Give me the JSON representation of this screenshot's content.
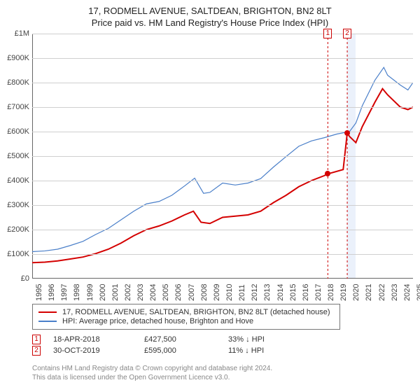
{
  "title": "17, RODMELL AVENUE, SALTDEAN, BRIGHTON, BN2 8LT",
  "subtitle": "Price paid vs. HM Land Registry's House Price Index (HPI)",
  "colors": {
    "series1": "#d40000",
    "series2": "#4a7fc9",
    "grid": "#cfcfcf",
    "axis": "#666666",
    "marker_border": "#cc0000",
    "shade": "rgba(120,160,230,0.15)",
    "text": "#333333",
    "footer": "#888888"
  },
  "y_axis": {
    "min": 0,
    "max": 1000000,
    "step": 100000,
    "labels": [
      "£0",
      "£100K",
      "£200K",
      "£300K",
      "£400K",
      "£500K",
      "£600K",
      "£700K",
      "£800K",
      "£900K",
      "£1M"
    ]
  },
  "x_axis": {
    "min": 1995,
    "max": 2025,
    "labels": [
      "1995",
      "1996",
      "1997",
      "1998",
      "1999",
      "2000",
      "2001",
      "2002",
      "2003",
      "2004",
      "2005",
      "2006",
      "2007",
      "2008",
      "2009",
      "2010",
      "2011",
      "2012",
      "2013",
      "2014",
      "2015",
      "2016",
      "2017",
      "2018",
      "2019",
      "2020",
      "2021",
      "2022",
      "2023",
      "2024",
      "2025"
    ]
  },
  "series": [
    {
      "name": "17, RODMELL AVENUE, SALTDEAN, BRIGHTON, BN2 8LT (detached house)",
      "color": "#d40000",
      "width": 2,
      "points": [
        [
          1995,
          65000
        ],
        [
          1996,
          67000
        ],
        [
          1997,
          72000
        ],
        [
          1998,
          80000
        ],
        [
          1999,
          88000
        ],
        [
          2000,
          102000
        ],
        [
          2001,
          120000
        ],
        [
          2002,
          145000
        ],
        [
          2003,
          175000
        ],
        [
          2004,
          200000
        ],
        [
          2005,
          215000
        ],
        [
          2006,
          235000
        ],
        [
          2007,
          260000
        ],
        [
          2007.7,
          275000
        ],
        [
          2008.3,
          230000
        ],
        [
          2009,
          225000
        ],
        [
          2010,
          250000
        ],
        [
          2011,
          255000
        ],
        [
          2012,
          260000
        ],
        [
          2013,
          275000
        ],
        [
          2014,
          310000
        ],
        [
          2015,
          340000
        ],
        [
          2016,
          375000
        ],
        [
          2017,
          400000
        ],
        [
          2018.0,
          420000
        ],
        [
          2018.29,
          427500
        ],
        [
          2019.5,
          445000
        ],
        [
          2019.82,
          595000
        ],
        [
          2020,
          580000
        ],
        [
          2020.5,
          555000
        ],
        [
          2021,
          620000
        ],
        [
          2022,
          720000
        ],
        [
          2022.6,
          775000
        ],
        [
          2023,
          750000
        ],
        [
          2024,
          700000
        ],
        [
          2024.6,
          690000
        ],
        [
          2025,
          700000
        ]
      ],
      "dots": [
        {
          "x": 2018.29,
          "y": 427500
        },
        {
          "x": 2019.82,
          "y": 595000
        }
      ]
    },
    {
      "name": "HPI: Average price, detached house, Brighton and Hove",
      "color": "#4a7fc9",
      "width": 1.2,
      "points": [
        [
          1995,
          110000
        ],
        [
          1996,
          113000
        ],
        [
          1997,
          120000
        ],
        [
          1998,
          135000
        ],
        [
          1999,
          152000
        ],
        [
          2000,
          180000
        ],
        [
          2001,
          205000
        ],
        [
          2002,
          240000
        ],
        [
          2003,
          275000
        ],
        [
          2004,
          305000
        ],
        [
          2005,
          315000
        ],
        [
          2006,
          340000
        ],
        [
          2007,
          378000
        ],
        [
          2007.8,
          410000
        ],
        [
          2008.5,
          348000
        ],
        [
          2009,
          352000
        ],
        [
          2010,
          390000
        ],
        [
          2011,
          382000
        ],
        [
          2012,
          390000
        ],
        [
          2013,
          408000
        ],
        [
          2014,
          455000
        ],
        [
          2015,
          498000
        ],
        [
          2016,
          540000
        ],
        [
          2017,
          562000
        ],
        [
          2018,
          575000
        ],
        [
          2019,
          590000
        ],
        [
          2020,
          600000
        ],
        [
          2020.5,
          635000
        ],
        [
          2021,
          705000
        ],
        [
          2022,
          810000
        ],
        [
          2022.7,
          862000
        ],
        [
          2023,
          830000
        ],
        [
          2024,
          790000
        ],
        [
          2024.6,
          770000
        ],
        [
          2025,
          800000
        ]
      ]
    }
  ],
  "shaded_region": {
    "x_start": 2019.82,
    "x_end": 2020.5
  },
  "markers": [
    {
      "label": "1",
      "x": 2018.29,
      "y_top": 1000000,
      "color": "#cc0000"
    },
    {
      "label": "2",
      "x": 2019.82,
      "y_top": 1000000,
      "color": "#cc0000"
    }
  ],
  "legend": [
    {
      "color": "#d40000",
      "label": "17, RODMELL AVENUE, SALTDEAN, BRIGHTON, BN2 8LT (detached house)"
    },
    {
      "color": "#4a7fc9",
      "label": "HPI: Average price, detached house, Brighton and Hove"
    }
  ],
  "events": [
    {
      "n": "1",
      "date": "18-APR-2018",
      "price": "£427,500",
      "diff": "33%",
      "arrow": "↓",
      "diff_label": "HPI"
    },
    {
      "n": "2",
      "date": "30-OCT-2019",
      "price": "£595,000",
      "diff": "11%",
      "arrow": "↓",
      "diff_label": "HPI"
    }
  ],
  "footer1": "Contains HM Land Registry data © Crown copyright and database right 2024.",
  "footer2": "This data is licensed under the Open Government Licence v3.0."
}
